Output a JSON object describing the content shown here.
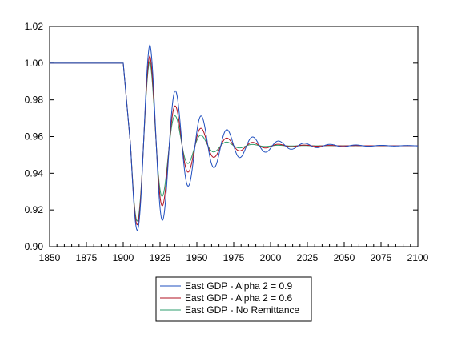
{
  "chart_data": {
    "type": "line",
    "title": "",
    "xlabel": "",
    "ylabel": "",
    "xlim": [
      1850,
      2100
    ],
    "ylim": [
      0.9,
      1.02
    ],
    "x_ticks": [
      "1850",
      "1875",
      "1900",
      "1925",
      "1950",
      "1975",
      "2000",
      "2025",
      "2050",
      "2075",
      "2100"
    ],
    "y_ticks": [
      "0.90",
      "0.92",
      "0.94",
      "0.96",
      "0.98",
      "1.00",
      "1.02"
    ],
    "grid": false,
    "legend_position": "bottom-center",
    "model": {
      "baseline": 1.0,
      "shock_start": 1900,
      "steady_state": 0.955,
      "oscillation_period": 17.5
    },
    "series": [
      {
        "name": "East GDP - Alpha 2 = 0.9",
        "color": "#1f4fbf",
        "first_trough": 0.909,
        "first_peak": 1.01,
        "decay_rate": 0.035
      },
      {
        "name": "East GDP - Alpha 2 = 0.6",
        "color": "#b01020",
        "first_trough": 0.912,
        "first_peak": 1.004,
        "decay_rate": 0.047
      },
      {
        "name": "East GDP - No Remittance",
        "color": "#2e9e6e",
        "first_trough": 0.914,
        "first_peak": 1.001,
        "decay_rate": 0.06
      }
    ]
  }
}
